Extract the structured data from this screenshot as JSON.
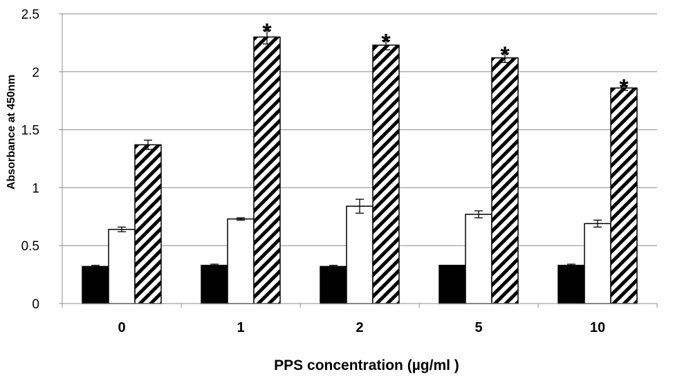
{
  "chart_data": {
    "type": "bar",
    "categories": [
      "0",
      "1",
      "2",
      "5",
      "10"
    ],
    "xlabel": "PPS concentration (µg/ml )",
    "ylabel": "Absorbance at 450nm",
    "ylim": [
      0,
      2.5
    ],
    "yticks": [
      "0",
      "0.5",
      "1",
      "1.5",
      "2",
      "2.5"
    ],
    "grid": true,
    "legend": "none",
    "series": [
      {
        "style": "solid-black",
        "fill": "#000000",
        "values": [
          0.32,
          0.33,
          0.32,
          0.33,
          0.33
        ],
        "errors": [
          0.01,
          0.01,
          0.01,
          0.0,
          0.01
        ],
        "significant": [
          false,
          false,
          false,
          false,
          false
        ]
      },
      {
        "style": "white",
        "fill": "#ffffff",
        "values": [
          0.64,
          0.73,
          0.84,
          0.77,
          0.69
        ],
        "errors": [
          0.02,
          0.01,
          0.06,
          0.03,
          0.03
        ],
        "significant": [
          false,
          false,
          false,
          false,
          false
        ]
      },
      {
        "style": "diagonal-hatch",
        "fill": "#000000",
        "values": [
          1.37,
          2.3,
          2.23,
          2.12,
          1.86
        ],
        "errors": [
          0.04,
          0.06,
          0.04,
          0.04,
          0.02
        ],
        "significant": [
          false,
          true,
          true,
          true,
          true
        ]
      }
    ],
    "significance_marker": "*"
  }
}
